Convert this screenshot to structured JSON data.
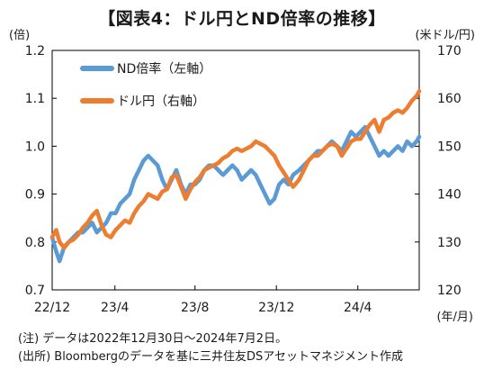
{
  "title": "【図表4：ドル円とND倍率の推移】",
  "units": {
    "left": "(倍)",
    "right": "(米ドル/円)",
    "x": "(年/月)"
  },
  "notes": [
    "(注) データは2022年12月30日～2024年7月2日。",
    "(出所) Bloombergのデータを基に三井住友DSアセットマネジメント作成"
  ],
  "colors": {
    "nd_ratio": "#5b9bd5",
    "usdjpy": "#ed7d31"
  },
  "chart_data": {
    "type": "line",
    "title": "【図表4：ドル円とND倍率の推移】",
    "xlabel": "(年/月)",
    "ylabel_left": "(倍)",
    "ylabel_right": "(米ドル/円)",
    "ylim_left": [
      0.7,
      1.2
    ],
    "ylim_right": [
      120,
      170
    ],
    "left_ticks": [
      "0.7",
      "0.8",
      "0.9",
      "1.0",
      "1.1",
      "1.2"
    ],
    "right_ticks": [
      "120",
      "130",
      "140",
      "150",
      "160",
      "170"
    ],
    "x_ticks": [
      "22/12",
      "23/4",
      "23/8",
      "23/12",
      "24/4"
    ],
    "x_range": [
      "2022-12-30",
      "2024-07-02"
    ],
    "grid": false,
    "legend_position": "top-left",
    "series": [
      {
        "name": "ND倍率（左軸）",
        "axis": "left",
        "x": [
          "2022-12-30",
          "2023-01-05",
          "2023-01-10",
          "2023-01-17",
          "2023-01-24",
          "2023-01-31",
          "2023-02-07",
          "2023-02-14",
          "2023-02-21",
          "2023-02-28",
          "2023-03-07",
          "2023-03-14",
          "2023-03-21",
          "2023-03-28",
          "2023-04-04",
          "2023-04-11",
          "2023-04-18",
          "2023-04-25",
          "2023-05-02",
          "2023-05-09",
          "2023-05-16",
          "2023-05-23",
          "2023-05-30",
          "2023-06-06",
          "2023-06-13",
          "2023-06-20",
          "2023-06-27",
          "2023-07-04",
          "2023-07-11",
          "2023-07-18",
          "2023-07-25",
          "2023-08-01",
          "2023-08-08",
          "2023-08-15",
          "2023-08-22",
          "2023-08-29",
          "2023-09-05",
          "2023-09-12",
          "2023-09-19",
          "2023-09-26",
          "2023-10-03",
          "2023-10-10",
          "2023-10-17",
          "2023-10-24",
          "2023-10-31",
          "2023-11-07",
          "2023-11-14",
          "2023-11-21",
          "2023-11-28",
          "2023-12-05",
          "2023-12-12",
          "2023-12-19",
          "2023-12-26",
          "2024-01-04",
          "2024-01-11",
          "2024-01-18",
          "2024-01-25",
          "2024-02-01",
          "2024-02-08",
          "2024-02-15",
          "2024-02-22",
          "2024-03-01",
          "2024-03-08",
          "2024-03-15",
          "2024-03-22",
          "2024-03-29",
          "2024-04-05",
          "2024-04-12",
          "2024-04-19",
          "2024-04-26",
          "2024-05-03",
          "2024-05-10",
          "2024-05-17",
          "2024-05-24",
          "2024-05-31",
          "2024-06-07",
          "2024-06-14",
          "2024-06-21",
          "2024-06-28",
          "2024-07-02"
        ],
        "values": [
          0.81,
          0.78,
          0.76,
          0.79,
          0.8,
          0.81,
          0.82,
          0.82,
          0.83,
          0.84,
          0.82,
          0.83,
          0.84,
          0.86,
          0.86,
          0.88,
          0.89,
          0.9,
          0.93,
          0.95,
          0.97,
          0.98,
          0.97,
          0.96,
          0.93,
          0.91,
          0.93,
          0.95,
          0.92,
          0.9,
          0.92,
          0.92,
          0.93,
          0.95,
          0.96,
          0.96,
          0.95,
          0.94,
          0.95,
          0.96,
          0.95,
          0.93,
          0.94,
          0.95,
          0.94,
          0.92,
          0.9,
          0.88,
          0.89,
          0.92,
          0.93,
          0.92,
          0.94,
          0.95,
          0.96,
          0.97,
          0.98,
          0.99,
          0.99,
          1.0,
          1.01,
          1.0,
          0.99,
          1.01,
          1.03,
          1.02,
          1.03,
          1.04,
          1.02,
          1.0,
          0.98,
          0.99,
          0.98,
          0.99,
          1.0,
          0.99,
          1.01,
          1.0,
          1.01,
          1.02
        ]
      },
      {
        "name": "ドル円（右軸）",
        "axis": "right",
        "x": [
          "2022-12-30",
          "2023-01-05",
          "2023-01-10",
          "2023-01-17",
          "2023-01-24",
          "2023-01-31",
          "2023-02-07",
          "2023-02-14",
          "2023-02-21",
          "2023-02-28",
          "2023-03-07",
          "2023-03-14",
          "2023-03-21",
          "2023-03-28",
          "2023-04-04",
          "2023-04-11",
          "2023-04-18",
          "2023-04-25",
          "2023-05-02",
          "2023-05-09",
          "2023-05-16",
          "2023-05-23",
          "2023-05-30",
          "2023-06-06",
          "2023-06-13",
          "2023-06-20",
          "2023-06-27",
          "2023-07-04",
          "2023-07-11",
          "2023-07-18",
          "2023-07-25",
          "2023-08-01",
          "2023-08-08",
          "2023-08-15",
          "2023-08-22",
          "2023-08-29",
          "2023-09-05",
          "2023-09-12",
          "2023-09-19",
          "2023-09-26",
          "2023-10-03",
          "2023-10-10",
          "2023-10-17",
          "2023-10-24",
          "2023-10-31",
          "2023-11-07",
          "2023-11-14",
          "2023-11-21",
          "2023-11-28",
          "2023-12-05",
          "2023-12-12",
          "2023-12-19",
          "2023-12-26",
          "2024-01-04",
          "2024-01-11",
          "2024-01-18",
          "2024-01-25",
          "2024-02-01",
          "2024-02-08",
          "2024-02-15",
          "2024-02-22",
          "2024-03-01",
          "2024-03-08",
          "2024-03-15",
          "2024-03-22",
          "2024-03-29",
          "2024-04-05",
          "2024-04-12",
          "2024-04-19",
          "2024-04-26",
          "2024-05-03",
          "2024-05-10",
          "2024-05-17",
          "2024-05-24",
          "2024-05-31",
          "2024-06-07",
          "2024-06-14",
          "2024-06-21",
          "2024-06-28",
          "2024-07-02"
        ],
        "values": [
          131.0,
          132.5,
          130.0,
          128.8,
          130.0,
          130.5,
          131.5,
          133.0,
          134.0,
          135.5,
          136.5,
          133.5,
          131.5,
          131.0,
          132.5,
          133.5,
          134.5,
          134.0,
          136.0,
          137.5,
          138.5,
          140.0,
          139.5,
          139.0,
          140.5,
          141.0,
          143.5,
          144.0,
          141.5,
          139.0,
          141.0,
          142.5,
          143.5,
          145.0,
          145.5,
          146.0,
          146.5,
          147.5,
          148.0,
          149.0,
          149.5,
          149.0,
          149.5,
          150.0,
          151.0,
          150.5,
          150.0,
          149.0,
          148.0,
          146.0,
          144.5,
          143.0,
          141.5,
          143.0,
          145.0,
          147.0,
          148.0,
          148.0,
          149.0,
          150.0,
          150.5,
          150.0,
          148.0,
          149.5,
          151.0,
          151.5,
          151.5,
          153.0,
          154.5,
          155.5,
          153.0,
          155.5,
          156.0,
          157.0,
          157.5,
          157.0,
          158.0,
          159.5,
          160.5,
          161.5
        ]
      }
    ]
  }
}
